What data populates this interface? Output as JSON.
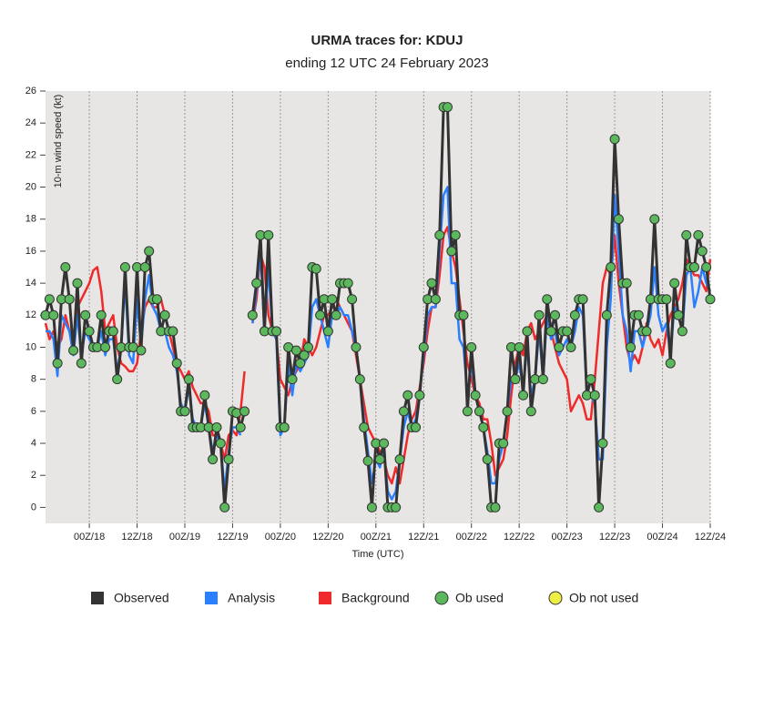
{
  "chart_data": {
    "type": "line",
    "title": "URMA traces for: KDUJ",
    "subtitle": "ending 12 UTC 24 February 2023",
    "y_label": "10-m wind speed (kt)",
    "x_label": "Time (UTC)",
    "xlim": [
      -11,
      156
    ],
    "ylim": [
      -1,
      26
    ],
    "yticks": [
      0,
      2,
      4,
      6,
      8,
      10,
      12,
      14,
      16,
      18,
      20,
      22,
      24,
      26
    ],
    "xticks": [
      {
        "value": 0,
        "label": "00Z/18"
      },
      {
        "value": 12,
        "label": "12Z/18"
      },
      {
        "value": 24,
        "label": "00Z/19"
      },
      {
        "value": 36,
        "label": "12Z/19"
      },
      {
        "value": 48,
        "label": "00Z/20"
      },
      {
        "value": 60,
        "label": "12Z/20"
      },
      {
        "value": 72,
        "label": "00Z/21"
      },
      {
        "value": 84,
        "label": "12Z/21"
      },
      {
        "value": 96,
        "label": "00Z/22"
      },
      {
        "value": 108,
        "label": "12Z/22"
      },
      {
        "value": 120,
        "label": "00Z/23"
      },
      {
        "value": 132,
        "label": "12Z/23"
      },
      {
        "value": 144,
        "label": "00Z/24"
      },
      {
        "value": 156,
        "label": "12Z/24"
      }
    ],
    "x": [
      -11,
      -10,
      -9,
      -8,
      -7,
      -6,
      -5,
      -4,
      -3,
      -2,
      -1,
      0,
      1,
      2,
      3,
      4,
      5,
      6,
      7,
      8,
      9,
      10,
      11,
      12,
      13,
      14,
      15,
      16,
      17,
      18,
      19,
      20,
      21,
      22,
      23,
      24,
      25,
      26,
      27,
      28,
      29,
      30,
      31,
      32,
      33,
      34,
      35,
      36,
      37,
      38,
      39,
      40,
      41,
      42,
      43,
      44,
      45,
      46,
      47,
      48,
      49,
      50,
      51,
      52,
      53,
      54,
      55,
      56,
      57,
      58,
      59,
      60,
      61,
      62,
      63,
      64,
      65,
      66,
      67,
      68,
      69,
      70,
      71,
      72,
      73,
      74,
      75,
      76,
      77,
      78,
      79,
      80,
      81,
      82,
      83,
      84,
      85,
      86,
      87,
      88,
      89,
      90,
      91,
      92,
      93,
      94,
      95,
      96,
      97,
      98,
      99,
      100,
      101,
      102,
      103,
      104,
      105,
      106,
      107,
      108,
      109,
      110,
      111,
      112,
      113,
      114,
      115,
      116,
      117,
      118,
      119,
      120,
      121,
      122,
      123,
      124,
      125,
      126,
      127,
      128,
      129,
      130,
      131,
      132,
      133,
      134,
      135,
      136,
      137,
      138,
      139,
      140,
      141,
      142,
      143,
      144,
      145,
      146,
      147,
      148,
      149,
      150,
      151,
      152,
      153,
      154,
      155,
      156
    ],
    "series": [
      {
        "name": "Observed",
        "color": "#333333",
        "values": [
          12,
          13,
          12,
          9,
          13,
          15,
          13,
          9.8,
          14,
          9,
          12,
          11,
          10,
          10,
          12,
          10,
          11,
          11,
          8,
          10,
          15,
          10,
          10,
          15,
          9.8,
          15,
          16,
          13,
          13,
          11,
          12,
          11,
          11,
          9,
          6,
          6,
          8,
          5,
          5,
          5,
          7,
          5,
          3,
          5,
          4,
          0,
          3,
          6,
          5.9,
          5,
          6,
          null,
          12,
          14,
          17,
          11,
          17,
          11,
          11,
          5,
          5,
          10,
          8,
          9.8,
          9,
          9.5,
          10,
          15,
          14.9,
          12,
          13,
          11,
          13,
          12,
          14,
          14,
          14,
          13,
          10,
          8,
          5,
          2.9,
          0,
          4,
          3,
          4,
          0,
          0,
          0,
          3,
          6,
          7,
          5,
          5,
          7,
          10,
          13,
          14,
          13,
          17,
          25,
          25,
          16,
          17,
          12,
          12,
          6,
          10,
          7,
          6,
          5,
          3,
          0,
          0,
          4,
          4,
          6,
          10,
          8,
          10,
          7,
          11,
          6,
          8,
          12,
          8,
          13,
          11,
          12,
          10,
          11,
          11,
          10,
          12,
          13,
          13,
          7,
          8,
          7,
          0,
          4,
          12,
          15,
          23,
          18,
          14,
          14,
          10,
          12,
          12,
          11,
          11,
          13,
          18,
          13,
          13,
          13,
          9,
          14,
          12,
          11,
          17,
          15,
          15,
          17,
          16,
          15,
          13
        ]
      },
      {
        "name": "Analysis",
        "color": "#2a7fff",
        "values": [
          11,
          11,
          10.5,
          8.2,
          12,
          11.5,
          11,
          9.5,
          12,
          9.5,
          11,
          10.5,
          10,
          10,
          11,
          9.5,
          10.5,
          10.5,
          8.5,
          10,
          14,
          9.5,
          9,
          13,
          10,
          13,
          14.5,
          12.5,
          12,
          11,
          11,
          10,
          9.5,
          8.5,
          6.5,
          6,
          7.5,
          5.5,
          5,
          5,
          6.5,
          5,
          3.5,
          4.5,
          4,
          1,
          3.5,
          5,
          5,
          4.5,
          null,
          null,
          11.5,
          13.5,
          16,
          11,
          15,
          11,
          10.5,
          4.5,
          5,
          9,
          7,
          9,
          8.5,
          9,
          9.5,
          12.5,
          13,
          12,
          11,
          10,
          12,
          12,
          12.5,
          12,
          12,
          11,
          10,
          8,
          5.5,
          3.5,
          1.5,
          3,
          2.5,
          3.5,
          1,
          0.5,
          1,
          3,
          5,
          6,
          5,
          5.5,
          7,
          9.5,
          12,
          12.5,
          12.5,
          16,
          19.5,
          20,
          14,
          14,
          10.5,
          10,
          7,
          9,
          7,
          6,
          5,
          3.5,
          1.5,
          1.5,
          3,
          4,
          6,
          8,
          8,
          9,
          7.5,
          10,
          7,
          8,
          11,
          8,
          12,
          10.5,
          11,
          9.5,
          10,
          10.5,
          10,
          11,
          12.5,
          12,
          7,
          7,
          6.5,
          3,
          3,
          10,
          13,
          19.5,
          16,
          12,
          11,
          8.5,
          11,
          11,
          10,
          11,
          12,
          15,
          12,
          11,
          11.5,
          9.5,
          12.5,
          12,
          11,
          14.5,
          15,
          12.5,
          13.5,
          15,
          14,
          13.5
        ]
      },
      {
        "name": "Background",
        "color": "#ee2a2a",
        "values": [
          11.5,
          10.5,
          11,
          10,
          10.5,
          12,
          11,
          10,
          12.5,
          13,
          13.5,
          14,
          14.8,
          15,
          13.5,
          11,
          11.5,
          12,
          10,
          9,
          8.8,
          8.5,
          8.5,
          9,
          11,
          12.5,
          13,
          12.5,
          12.5,
          13,
          12,
          11,
          10,
          9,
          8.5,
          8,
          8.5,
          7.5,
          7,
          6.5,
          6.5,
          6,
          4.5,
          4.5,
          4,
          3,
          4.5,
          4.8,
          4.5,
          6,
          8.5,
          null,
          11.5,
          13,
          15.8,
          15,
          12,
          11,
          10.5,
          8,
          7.5,
          7,
          8,
          8.5,
          9,
          10.5,
          10,
          9.5,
          10,
          11,
          12,
          12,
          12.5,
          13,
          12.5,
          12,
          11.5,
          11,
          9.5,
          8,
          6.5,
          5,
          4.5,
          4,
          3.5,
          3,
          2,
          1.5,
          2.5,
          1.5,
          3,
          4.5,
          5.5,
          6,
          7.5,
          9,
          11,
          12.5,
          12.5,
          14.5,
          17,
          17.5,
          16,
          15,
          13,
          11,
          9,
          8,
          7,
          6.5,
          5.5,
          5.5,
          4,
          2,
          2.5,
          3,
          4.5,
          7,
          9,
          10,
          9.5,
          11,
          11.5,
          10.5,
          11,
          11.5,
          12,
          11,
          10,
          9,
          8.5,
          8,
          6,
          6.5,
          7,
          6.5,
          5.5,
          5.5,
          8,
          11,
          14,
          15,
          14.5,
          17,
          14,
          12,
          10,
          9,
          9.5,
          9,
          10,
          11.5,
          10.5,
          10,
          10.5,
          9.5,
          11,
          12,
          12.5,
          13,
          14,
          15.5,
          15,
          14.5,
          14.5,
          14,
          13.5,
          15.5
        ]
      }
    ],
    "markers": [
      {
        "name": "Ob used",
        "color": "#5cb85c"
      },
      {
        "name": "Ob not used",
        "color": "#eeee44"
      }
    ],
    "grid": true
  }
}
